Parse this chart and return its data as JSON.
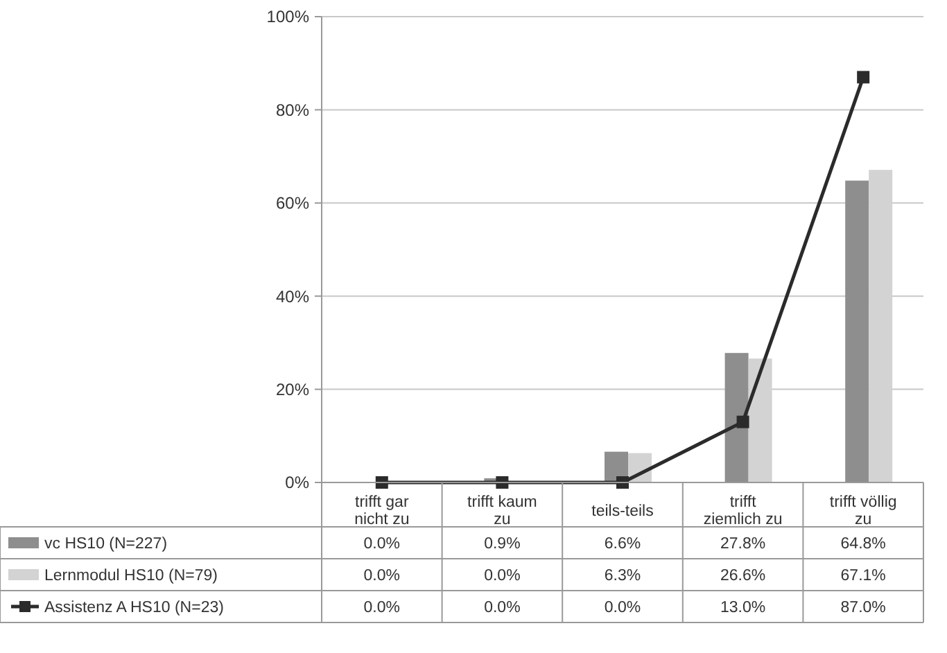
{
  "chart_data": {
    "type": "bar",
    "categories": [
      "trifft gar nicht zu",
      "trifft kaum zu",
      "teils-teils",
      "trifft ziemlich zu",
      "trifft völlig zu"
    ],
    "series": [
      {
        "name": "vc HS10 (N=227)",
        "color": "#8e8e8e",
        "values": [
          0.0,
          0.9,
          6.6,
          27.8,
          64.8
        ],
        "value_labels": [
          "0.0%",
          "0.9%",
          "6.6%",
          "27.8%",
          "64.8%"
        ]
      },
      {
        "name": "Lernmodul HS10 (N=79)",
        "color": "#d3d3d3",
        "values": [
          0.0,
          0.0,
          6.3,
          26.6,
          67.1
        ],
        "value_labels": [
          "0.0%",
          "0.0%",
          "6.3%",
          "26.6%",
          "67.1%"
        ]
      },
      {
        "name": "Assistenz A HS10 (N=23)",
        "type": "line",
        "color": "#2b2b2b",
        "marker": "square",
        "values": [
          0.0,
          0.0,
          0.0,
          13.0,
          87.0
        ],
        "value_labels": [
          "0.0%",
          "0.0%",
          "0.0%",
          "13.0%",
          "87.0%"
        ]
      }
    ],
    "ylim": [
      0,
      100
    ],
    "yticks": [
      {
        "value": 0,
        "label": "0%"
      },
      {
        "value": 20,
        "label": "20%"
      },
      {
        "value": 40,
        "label": "40%"
      },
      {
        "value": 60,
        "label": "60%"
      },
      {
        "value": 80,
        "label": "80%"
      },
      {
        "value": 100,
        "label": "100%"
      }
    ],
    "grid": "y",
    "legend": "bottom left"
  }
}
